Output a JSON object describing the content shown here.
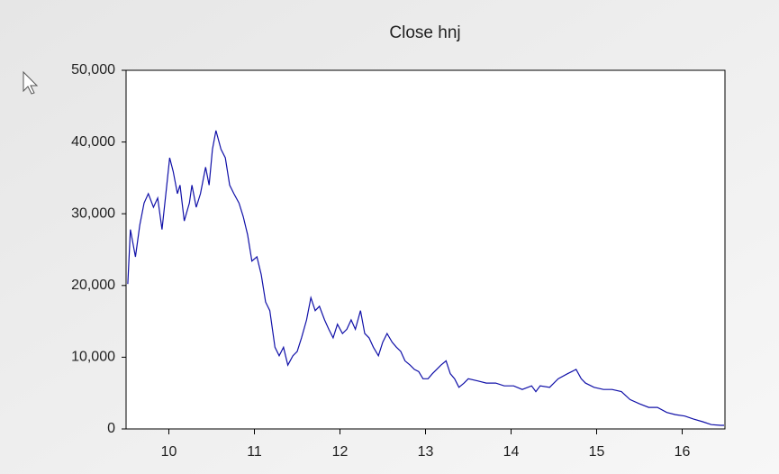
{
  "chart_data": {
    "type": "line",
    "title": "Close hnj",
    "x": [
      10.02,
      10.05,
      10.11,
      10.16,
      10.21,
      10.26,
      10.32,
      10.37,
      10.42,
      10.47,
      10.51,
      10.55,
      10.6,
      10.63,
      10.68,
      10.74,
      10.77,
      10.82,
      10.87,
      10.93,
      10.97,
      11.01,
      11.05,
      11.11,
      11.16,
      11.21,
      11.26,
      11.32,
      11.37,
      11.42,
      11.47,
      11.53,
      11.58,
      11.63,
      11.68,
      11.74,
      11.79,
      11.84,
      11.89,
      11.95,
      12.0,
      12.05,
      12.11,
      12.16,
      12.21,
      12.26,
      12.32,
      12.37,
      12.42,
      12.47,
      12.53,
      12.58,
      12.63,
      12.68,
      12.74,
      12.79,
      12.84,
      12.89,
      12.95,
      13.0,
      13.05,
      13.11,
      13.16,
      13.21,
      13.26,
      13.32,
      13.37,
      13.42,
      13.47,
      13.53,
      13.58,
      13.63,
      13.68,
      13.74,
      13.79,
      13.84,
      13.89,
      13.95,
      14.0,
      14.11,
      14.21,
      14.32,
      14.42,
      14.53,
      14.63,
      14.74,
      14.79,
      14.84,
      14.95,
      15.05,
      15.16,
      15.26,
      15.32,
      15.37,
      15.47,
      15.58,
      15.68,
      15.79,
      15.89,
      16.0,
      16.11,
      16.21,
      16.32,
      16.42,
      16.53,
      16.63,
      16.74,
      16.84,
      16.95,
      16.99
    ],
    "series": [
      {
        "name": "Close hnj",
        "color": "#1010a8",
        "values": [
          20200,
          27800,
          24000,
          28400,
          31500,
          32800,
          30900,
          32200,
          27800,
          33400,
          37800,
          35900,
          32800,
          34000,
          29000,
          31500,
          34000,
          30900,
          32800,
          36500,
          34000,
          39000,
          41600,
          39000,
          37800,
          34000,
          32800,
          31500,
          29600,
          27100,
          23400,
          24000,
          21500,
          17700,
          16500,
          11400,
          10200,
          11400,
          8900,
          10200,
          10800,
          12700,
          15200,
          18300,
          16500,
          17100,
          15200,
          13900,
          12700,
          14600,
          13300,
          13900,
          15200,
          13900,
          16500,
          13300,
          12700,
          11400,
          10200,
          12100,
          13300,
          12100,
          11400,
          10800,
          9500,
          8900,
          8300,
          8000,
          7000,
          7000,
          7700,
          8300,
          8900,
          9500,
          7700,
          7000,
          5800,
          6400,
          7000,
          6700,
          6400,
          6400,
          6000,
          6000,
          5500,
          6000,
          5200,
          6000,
          5800,
          7000,
          7700,
          8300,
          7000,
          6400,
          5800,
          5500,
          5500,
          5200,
          4100,
          3500,
          3000,
          3000,
          2300,
          2000,
          1800,
          1400,
          1000,
          600,
          500,
          500
        ]
      }
    ],
    "xlim": [
      10,
      17
    ],
    "xticks": [
      {
        "value": 10.5,
        "label": "10"
      },
      {
        "value": 11.5,
        "label": "11"
      },
      {
        "value": 12.5,
        "label": "12"
      },
      {
        "value": 13.5,
        "label": "13"
      },
      {
        "value": 14.5,
        "label": "14"
      },
      {
        "value": 15.5,
        "label": "15"
      },
      {
        "value": 16.5,
        "label": "16"
      }
    ],
    "ylim": [
      0,
      50000
    ],
    "yticks": [
      {
        "value": 0,
        "label": "0"
      },
      {
        "value": 10000,
        "label": "10,000"
      },
      {
        "value": 20000,
        "label": "20,000"
      },
      {
        "value": 30000,
        "label": "30,000"
      },
      {
        "value": 40000,
        "label": "40,000"
      },
      {
        "value": 50000,
        "label": "50,000"
      }
    ]
  }
}
